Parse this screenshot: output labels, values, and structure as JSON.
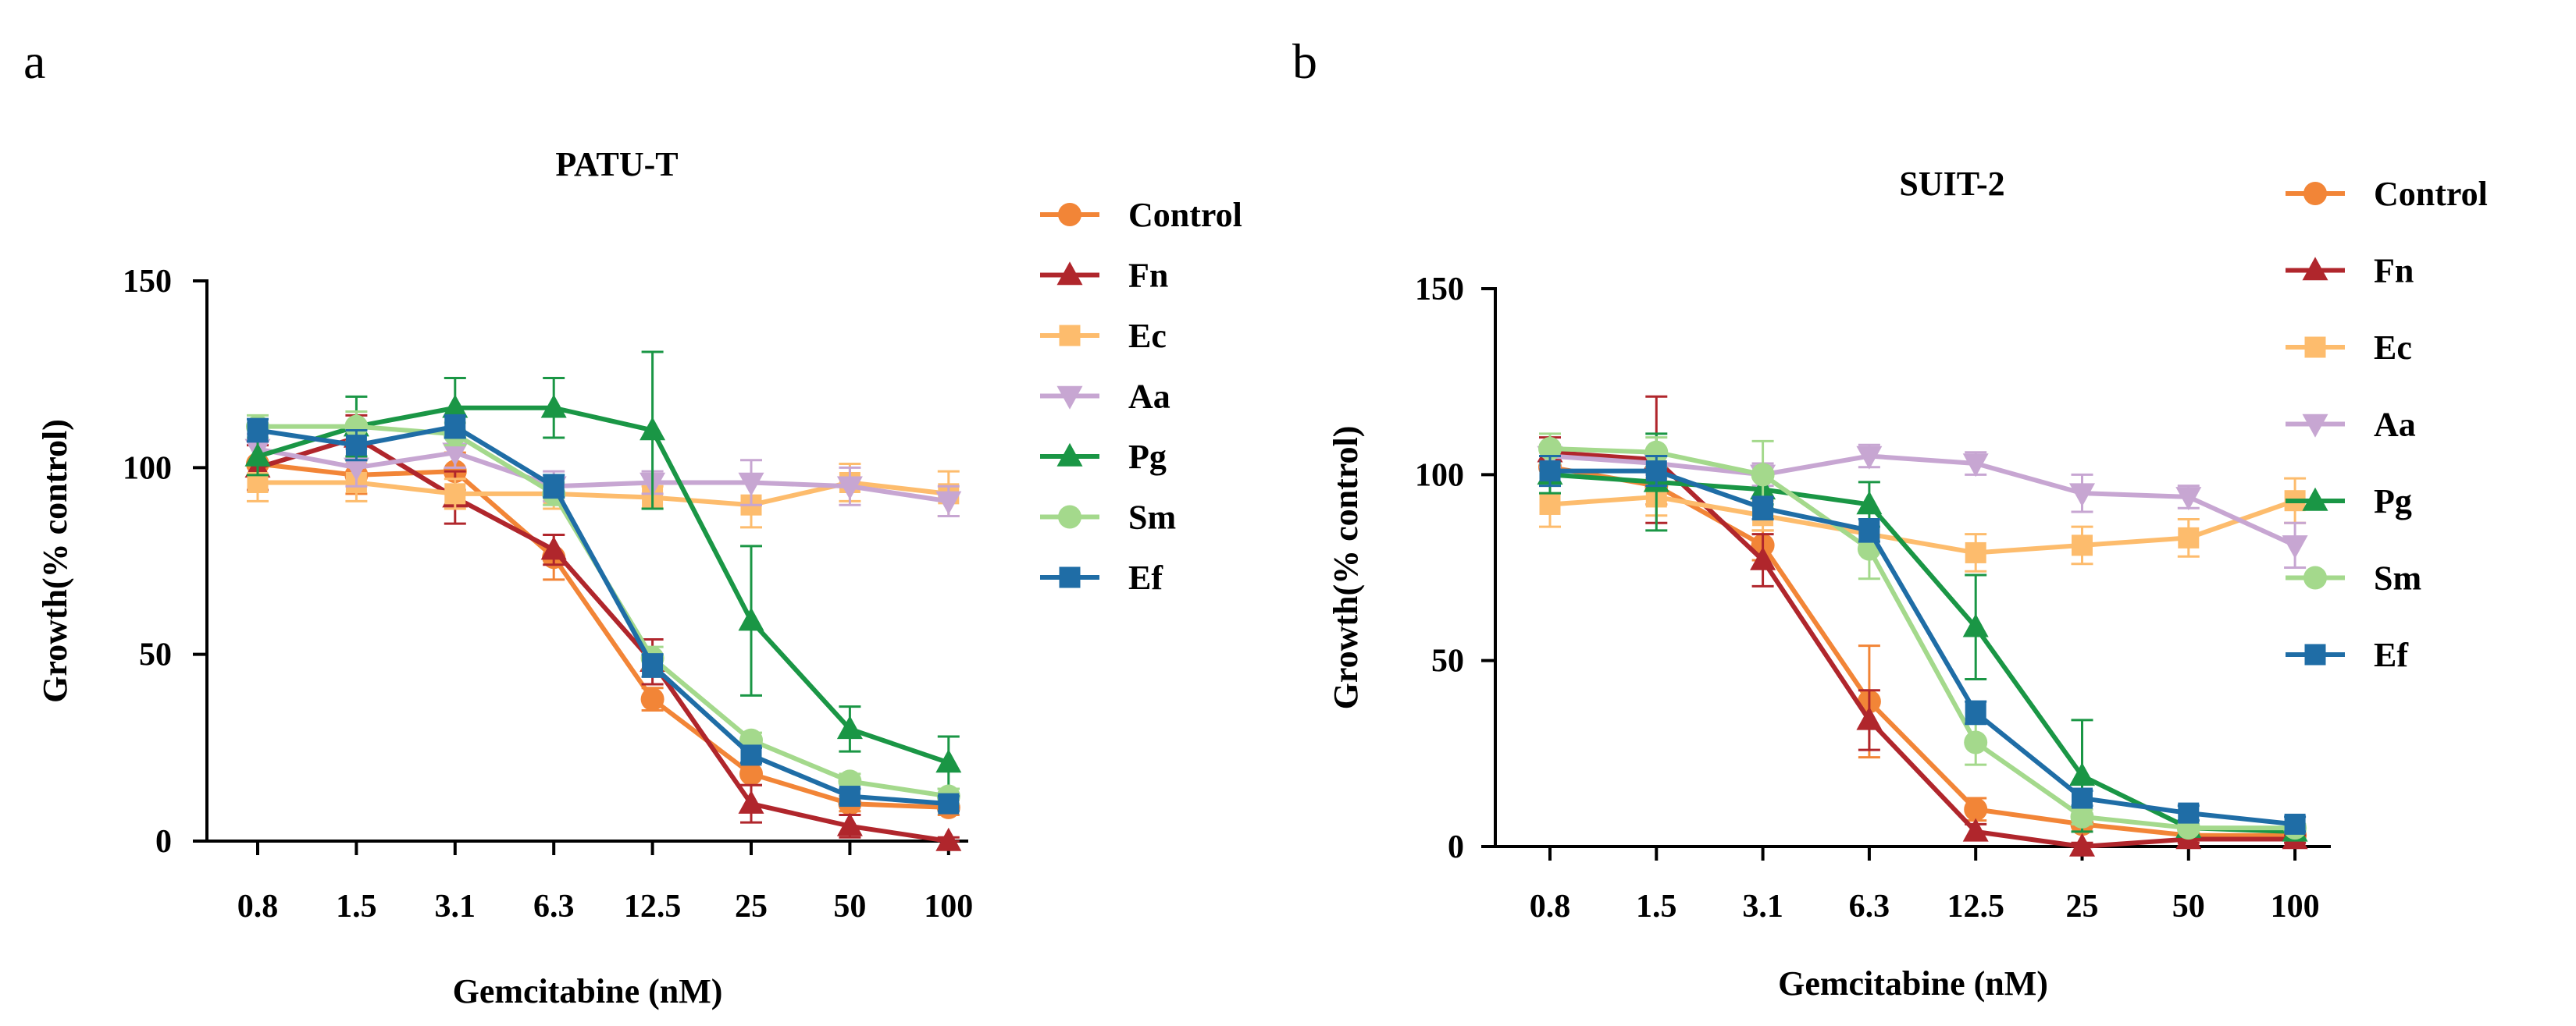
{
  "chart_data": [
    {
      "panel": "a",
      "type": "line",
      "title": "PATU-T",
      "xlabel": "Gemcitabine (nM)",
      "ylabel": "Growth(% control)",
      "categories": [
        "0.8",
        "1.5",
        "3.1",
        "6.3",
        "12.5",
        "25",
        "50",
        "100"
      ],
      "ylim": [
        0,
        150
      ],
      "yticks": [
        "0",
        "50",
        "100",
        "150"
      ],
      "legend_position": "right",
      "series": [
        {
          "name": "Control",
          "color": "#F28537",
          "marker": "circle",
          "values": [
            101,
            98,
            99,
            76,
            38,
            18,
            10,
            9
          ],
          "errors": [
            7,
            5,
            5,
            6,
            3,
            3,
            2,
            2
          ]
        },
        {
          "name": "Fn",
          "color": "#B0262C",
          "marker": "triangle-up",
          "values": [
            100,
            108,
            92,
            78,
            48,
            10,
            4,
            0
          ],
          "errors": [
            6,
            6,
            7,
            4,
            6,
            5,
            3,
            1
          ]
        },
        {
          "name": "Ec",
          "color": "#FDBC6D",
          "marker": "square",
          "values": [
            96,
            96,
            93,
            93,
            92,
            90,
            96,
            93
          ],
          "errors": [
            5,
            5,
            4,
            4,
            3,
            6,
            5,
            6
          ]
        },
        {
          "name": "Aa",
          "color": "#C7A6D2",
          "marker": "triangle-down",
          "values": [
            105,
            100,
            104,
            95,
            96,
            96,
            95,
            91
          ],
          "errors": [
            4,
            5,
            4,
            4,
            3,
            6,
            5,
            4
          ]
        },
        {
          "name": "Pg",
          "color": "#1A9645",
          "marker": "triangle-up",
          "values": [
            103,
            111,
            116,
            116,
            110,
            59,
            30,
            21
          ],
          "errors": [
            5,
            8,
            8,
            8,
            21,
            20,
            6,
            7
          ]
        },
        {
          "name": "Sm",
          "color": "#A4D98C",
          "marker": "circle",
          "values": [
            111,
            111,
            109,
            93,
            49,
            27,
            16,
            12
          ],
          "errors": [
            3,
            4,
            3,
            3,
            3,
            2,
            2,
            2
          ]
        },
        {
          "name": "Ef",
          "color": "#1F6DA6",
          "marker": "square",
          "values": [
            110,
            106,
            111,
            95,
            47,
            23,
            12,
            10
          ],
          "errors": [
            3,
            4,
            3,
            3,
            3,
            2,
            2,
            2
          ]
        }
      ]
    },
    {
      "panel": "b",
      "type": "line",
      "title": "SUIT-2",
      "xlabel": "Gemcitabine (nM)",
      "ylabel": "Growth(% control)",
      "categories": [
        "0.8",
        "1.5",
        "3.1",
        "6.3",
        "12.5",
        "25",
        "50",
        "100"
      ],
      "ylim": [
        0,
        150
      ],
      "yticks": [
        "0",
        "50",
        "100",
        "150"
      ],
      "legend_position": "right",
      "series": [
        {
          "name": "Control",
          "color": "#F28537",
          "marker": "circle",
          "values": [
            102,
            97,
            81,
            39,
            10,
            6,
            3,
            3
          ],
          "errors": [
            4,
            5,
            4,
            15,
            3,
            2,
            1,
            1
          ]
        },
        {
          "name": "Fn",
          "color": "#B0262C",
          "marker": "triangle-up",
          "values": [
            106,
            104,
            77,
            34,
            4,
            0,
            2,
            2
          ],
          "errors": [
            4,
            17,
            7,
            8,
            2,
            1,
            1,
            1
          ]
        },
        {
          "name": "Ec",
          "color": "#FDBC6D",
          "marker": "square",
          "values": [
            92,
            94,
            89,
            84,
            79,
            81,
            83,
            93
          ],
          "errors": [
            6,
            5,
            4,
            4,
            5,
            5,
            5,
            6
          ]
        },
        {
          "name": "Aa",
          "color": "#C7A6D2",
          "marker": "triangle-down",
          "values": [
            105,
            103,
            100,
            105,
            103,
            95,
            94,
            81
          ],
          "errors": [
            3,
            3,
            3,
            3,
            3,
            5,
            3,
            6
          ]
        },
        {
          "name": "Pg",
          "color": "#1A9645",
          "marker": "triangle-up",
          "values": [
            100,
            98,
            96,
            92,
            59,
            19,
            5,
            4
          ],
          "errors": [
            5,
            13,
            4,
            6,
            14,
            15,
            2,
            2
          ]
        },
        {
          "name": "Sm",
          "color": "#A4D98C",
          "marker": "circle",
          "values": [
            107,
            106,
            100,
            80,
            28,
            8,
            5,
            5
          ],
          "errors": [
            4,
            4,
            9,
            8,
            6,
            2,
            1,
            1
          ]
        },
        {
          "name": "Ef",
          "color": "#1F6DA6",
          "marker": "square",
          "values": [
            101,
            101,
            91,
            85,
            36,
            13,
            9,
            6
          ],
          "errors": [
            4,
            4,
            3,
            3,
            3,
            2,
            2,
            2
          ]
        }
      ]
    }
  ]
}
